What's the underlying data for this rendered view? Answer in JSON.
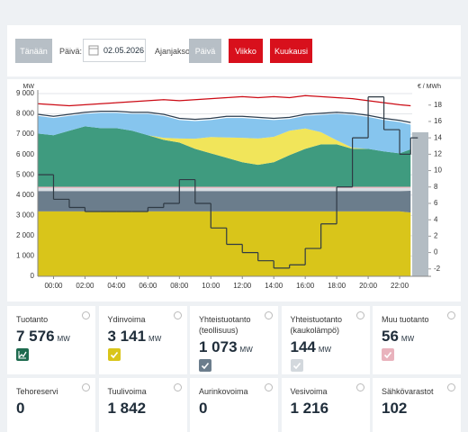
{
  "header": {
    "today": "Tänään",
    "day_label": "Päivä:",
    "date": "02.05.2026",
    "period_label": "Ajanjakso:",
    "periods": [
      {
        "label": "Päivä",
        "color": "#b7bfc6"
      },
      {
        "label": "Viikko",
        "color": "#d8101c"
      },
      {
        "label": "Kuukausi",
        "color": "#d8101c"
      }
    ]
  },
  "chart_data": {
    "type": "stacked_area",
    "y_label": "MW",
    "y2_label": "€ / MWh",
    "x": [
      -1,
      0,
      1,
      2,
      3,
      4,
      5,
      6,
      7,
      8,
      9,
      10,
      11,
      12,
      13,
      14,
      15,
      16,
      17,
      18,
      19,
      20,
      21,
      22,
      22.7
    ],
    "xlim": [
      -1,
      24
    ],
    "xticks": [
      {
        "value": 0,
        "label": "00:00"
      },
      {
        "value": 2,
        "label": "02:00"
      },
      {
        "value": 4,
        "label": "04:00"
      },
      {
        "value": 6,
        "label": "06:00"
      },
      {
        "value": 8,
        "label": "08:00"
      },
      {
        "value": 10,
        "label": "10:00"
      },
      {
        "value": 12,
        "label": "12:00"
      },
      {
        "value": 14,
        "label": "14:00"
      },
      {
        "value": 16,
        "label": "16:00"
      },
      {
        "value": 18,
        "label": "18:00"
      },
      {
        "value": 20,
        "label": "20:00"
      },
      {
        "value": 22,
        "label": "22:00"
      }
    ],
    "ylim": [
      0,
      9000
    ],
    "yticks": [
      0,
      {
        "value": 1000,
        "label": "1 000"
      },
      {
        "value": 2000,
        "label": "2 000"
      },
      {
        "value": 3000,
        "label": "3 000"
      },
      {
        "value": 4000,
        "label": "4 000"
      },
      {
        "value": 5000,
        "label": "5 000"
      },
      {
        "value": 6000,
        "label": "6 000"
      },
      {
        "value": 7000,
        "label": "7 000"
      },
      {
        "value": 8000,
        "label": "8 000"
      },
      {
        "value": 9000,
        "label": "9 000"
      }
    ],
    "y2lim": [
      -2.9,
      19.4
    ],
    "y2ticks": [
      -2,
      0,
      2,
      4,
      6,
      8,
      10,
      12,
      14,
      16,
      18
    ],
    "grid": true,
    "series": [
      {
        "style": "area",
        "color": "#d9c51a",
        "values": [
          3200,
          3200,
          3200,
          3200,
          3200,
          3200,
          3200,
          3200,
          3200,
          3200,
          3200,
          3200,
          3200,
          3200,
          3200,
          3200,
          3200,
          3200,
          3200,
          3200,
          3200,
          3200,
          3200,
          3200,
          3141
        ]
      },
      {
        "style": "area",
        "color": "#6b7d8c",
        "values": [
          1000,
          1000,
          1000,
          1000,
          1000,
          1000,
          1000,
          1000,
          1000,
          1000,
          1000,
          1000,
          1000,
          1000,
          1000,
          1000,
          1000,
          1000,
          1000,
          1000,
          1000,
          1000,
          1000,
          1000,
          1073
        ]
      },
      {
        "style": "area",
        "color": "#d8dde2",
        "values": [
          150,
          150,
          150,
          150,
          150,
          150,
          150,
          150,
          150,
          150,
          150,
          150,
          150,
          150,
          150,
          150,
          150,
          150,
          150,
          150,
          150,
          150,
          150,
          150,
          144
        ]
      },
      {
        "style": "area",
        "color": "#e9b3bd",
        "values": [
          60,
          60,
          60,
          60,
          60,
          60,
          60,
          60,
          60,
          60,
          60,
          60,
          60,
          60,
          60,
          60,
          60,
          60,
          60,
          60,
          60,
          60,
          60,
          60,
          56
        ]
      },
      {
        "style": "area",
        "color": "#3f9b7f",
        "values": [
          2620,
          2540,
          2760,
          2980,
          2890,
          2890,
          2760,
          2540,
          2310,
          2180,
          1870,
          1650,
          1430,
          1210,
          1080,
          1210,
          1560,
          1870,
          2090,
          2090,
          1870,
          1870,
          1740,
          1650,
          1842
        ]
      },
      {
        "style": "area",
        "color": "#f1e55a",
        "values": [
          0,
          0,
          0,
          0,
          0,
          0,
          0,
          0,
          100,
          200,
          500,
          800,
          1000,
          1200,
          1300,
          1250,
          1200,
          1000,
          600,
          200,
          50,
          0,
          0,
          0,
          0
        ]
      },
      {
        "style": "area",
        "color": "#86c5ee",
        "values": [
          870,
          850,
          730,
          610,
          750,
          750,
          830,
          1050,
          1080,
          910,
          870,
          840,
          960,
          980,
          960,
          830,
          580,
          620,
          850,
          1300,
          1620,
          1570,
          1550,
          1540,
          1216
        ]
      },
      {
        "style": "line",
        "color": "#2c3e50",
        "values": [
          7980,
          7880,
          7980,
          8080,
          8130,
          8130,
          8080,
          8080,
          7980,
          7780,
          7730,
          7780,
          7880,
          7880,
          7830,
          7780,
          7830,
          7980,
          8030,
          8080,
          8030,
          7930,
          7780,
          7680,
          7576
        ]
      },
      {
        "style": "line",
        "color": "#cc0a14",
        "values": [
          8500,
          8450,
          8400,
          8450,
          8500,
          8550,
          8600,
          8650,
          8700,
          8650,
          8700,
          8750,
          8800,
          8850,
          8800,
          8850,
          8800,
          8900,
          8850,
          8800,
          8750,
          8650,
          8550,
          8450,
          8400
        ]
      },
      {
        "style": "step",
        "axis": "y2",
        "color": "#2f3a44",
        "values": [
          9.5,
          6.5,
          5.5,
          5,
          5,
          5,
          5,
          5.5,
          6,
          8.9,
          6,
          3,
          1,
          0,
          -1,
          -1.9,
          -1.5,
          0.5,
          3.5,
          8,
          14,
          19,
          15,
          12,
          14
        ]
      }
    ]
  },
  "cards": [
    {
      "label": "Tuotanto",
      "value": "7 576",
      "unit": "MW",
      "color": "#1e6b4f"
    },
    {
      "label": "Ydinvoima",
      "value": "3 141",
      "unit": "MW",
      "color": "#d9c51a"
    },
    {
      "label": "Yhteistuotanto (teollisuus)",
      "value": "1 073",
      "unit": "MW",
      "color": "#6b7d8c"
    },
    {
      "label": "Yhteistuotanto (kaukolämpö)",
      "value": "144",
      "unit": "MW",
      "color": "#d3d8dd"
    },
    {
      "label": "Muu tuotanto",
      "value": "56",
      "unit": "MW",
      "color": "#e9b3bd"
    },
    {
      "label": "Tehoreservi",
      "value": "0"
    },
    {
      "label": "Tuulivoima",
      "value": "1 842"
    },
    {
      "label": "Aurinkovoima",
      "value": "0"
    },
    {
      "label": "Vesivoima",
      "value": "1 216"
    },
    {
      "label": "Sähkövarastot",
      "value": "102"
    }
  ]
}
